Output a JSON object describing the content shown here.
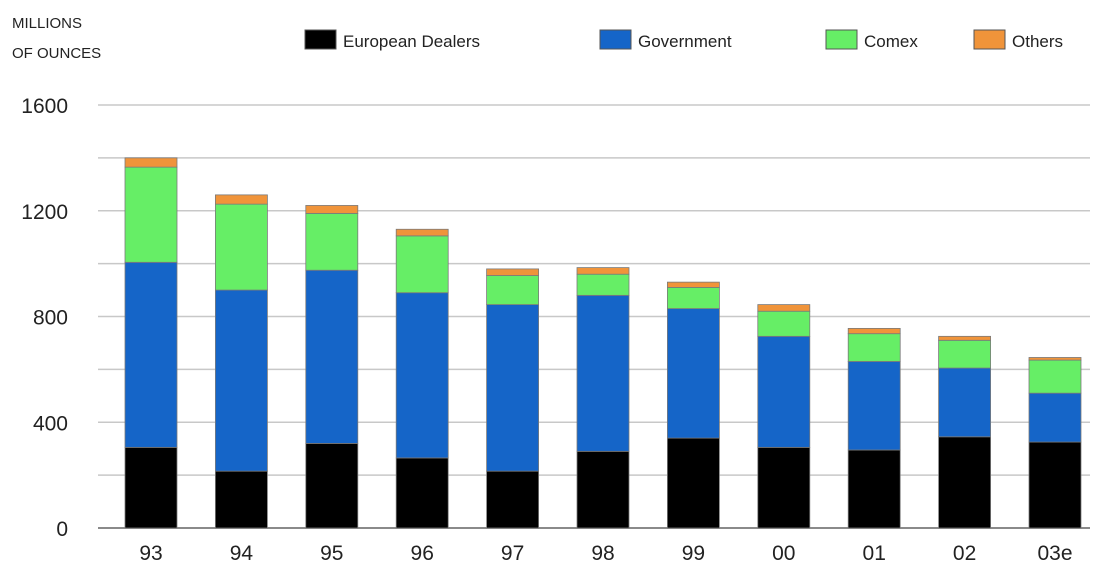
{
  "chart_data": {
    "type": "bar",
    "stacked": true,
    "ylabel": "MILLIONS OF OUNCES",
    "ylabel_lines": [
      "MILLIONS",
      "OF OUNCES"
    ],
    "ylim": [
      0,
      1600
    ],
    "yticks": [
      0,
      400,
      800,
      1200,
      1600
    ],
    "ytick_labels": [
      "0",
      "400",
      "800",
      "1200",
      "1600"
    ],
    "grid": true,
    "legend_position": "top",
    "categories": [
      "93",
      "94",
      "95",
      "96",
      "97",
      "98",
      "99",
      "00",
      "01",
      "02",
      "03e"
    ],
    "series": [
      {
        "name": "European Dealers",
        "color": "#000000",
        "values": [
          305,
          215,
          320,
          265,
          215,
          290,
          340,
          305,
          295,
          345,
          325
        ]
      },
      {
        "name": "Government",
        "color": "#1565c8",
        "values": [
          700,
          685,
          655,
          625,
          630,
          590,
          490,
          420,
          335,
          260,
          185
        ]
      },
      {
        "name": "Comex",
        "color": "#66ee66",
        "values": [
          360,
          325,
          215,
          215,
          110,
          80,
          80,
          95,
          105,
          105,
          125
        ]
      },
      {
        "name": "Others",
        "color": "#f0943a",
        "values": [
          35,
          35,
          30,
          25,
          25,
          25,
          20,
          25,
          20,
          15,
          10
        ]
      }
    ]
  }
}
